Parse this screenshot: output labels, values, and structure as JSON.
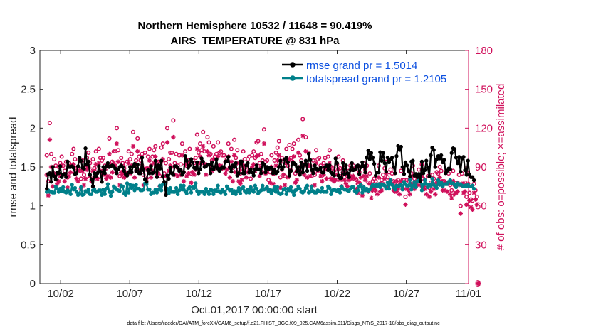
{
  "chart_data": {
    "type": "line",
    "title": [
      "Northern Hemisphere 10532 / 11648 = 90.419%",
      "AIRS_TEMPERATURE @ 831 hPa"
    ],
    "xlabel": "Oct.01,2017 00:00:00 start",
    "ylabel_left": "rmse and totalspread",
    "ylabel_right": "# of obs: o=possible; ×=assimilated",
    "xlim": [
      0.5,
      31.5
    ],
    "ylim_left": [
      0,
      3
    ],
    "ylim_right": [
      0,
      180
    ],
    "x_ticks": [
      {
        "x": 2,
        "label": "10/02"
      },
      {
        "x": 7,
        "label": "10/07"
      },
      {
        "x": 12,
        "label": "10/12"
      },
      {
        "x": 17,
        "label": "10/17"
      },
      {
        "x": 22,
        "label": "10/22"
      },
      {
        "x": 27,
        "label": "10/27"
      },
      {
        "x": 32,
        "label": "11/01"
      }
    ],
    "y_ticks_left": [
      "0",
      "0.5",
      "1",
      "1.5",
      "2",
      "2.5",
      "3"
    ],
    "y_ticks_right": [
      "0",
      "30",
      "60",
      "90",
      "120",
      "150",
      "180"
    ],
    "colors": {
      "rmse": "#000000",
      "spread": "#00808a",
      "obs": "#d0105b",
      "legend_text": "#0b4fe0"
    },
    "legend_position": "top-right",
    "series": [
      {
        "name": "rmse grand pr = 1.5014",
        "axis": "left",
        "marker": "dot",
        "values": [
          1.22,
          1.41,
          1.42,
          1.31,
          1.5,
          1.38,
          1.34,
          1.43,
          1.42,
          1.51,
          1.37,
          1.4,
          1.41,
          1.37,
          1.57,
          1.5,
          1.5,
          1.51,
          1.49,
          1.41,
          1.42,
          1.51,
          1.62,
          1.58,
          1.49,
          1.48,
          1.74,
          1.53,
          1.57,
          1.4,
          1.34,
          1.25,
          1.42,
          1.38,
          1.42,
          1.51,
          1.44,
          1.31,
          1.5,
          1.42,
          1.51,
          1.55,
          1.5,
          1.51,
          1.52,
          1.51,
          1.48,
          1.42,
          1.47,
          1.5,
          1.52,
          1.5,
          1.45,
          1.41,
          1.39,
          1.43,
          1.5,
          1.43,
          1.51,
          1.54,
          1.45,
          1.53,
          1.42,
          1.42,
          1.62,
          1.46,
          1.34,
          1.31,
          1.46,
          1.42,
          1.51,
          1.42,
          1.43,
          1.58,
          1.37,
          1.52,
          1.48,
          1.58,
          1.38,
          1.31,
          1.14,
          1.39,
          1.35,
          1.49,
          1.42,
          1.4,
          1.51,
          1.51,
          1.49,
          1.45,
          1.46,
          1.4,
          1.43,
          1.64,
          1.58,
          1.49,
          1.52,
          1.6,
          1.56,
          1.49,
          1.48,
          1.56,
          1.42,
          1.47,
          1.61,
          1.57,
          1.5,
          1.51,
          1.53,
          1.53,
          1.42,
          1.56,
          1.47,
          1.5,
          1.6,
          1.48,
          1.45,
          1.48,
          1.5,
          1.49,
          1.57,
          1.57,
          1.63,
          1.49,
          1.44,
          1.52,
          1.5,
          1.55,
          1.39,
          1.42,
          1.57,
          1.57,
          1.42,
          1.42,
          1.52,
          1.55,
          1.43,
          1.47,
          1.43,
          1.39,
          1.47,
          1.52,
          1.47,
          1.47,
          1.42,
          1.55,
          1.53,
          1.43,
          1.5,
          1.47,
          1.49,
          1.49,
          1.42,
          1.46,
          1.42,
          1.44,
          1.5,
          1.58,
          1.47,
          1.5,
          1.6,
          1.62,
          1.56,
          1.39,
          1.45,
          1.55,
          1.55,
          1.53,
          1.44,
          1.5,
          1.4,
          1.56,
          1.43,
          1.53,
          1.58,
          1.45,
          1.67,
          1.59,
          1.46,
          1.42,
          1.52,
          1.48,
          1.46,
          1.47,
          1.49,
          1.43,
          1.43,
          1.5,
          1.52,
          1.46,
          1.52,
          1.43,
          1.41,
          1.39,
          1.61,
          1.55,
          1.39,
          1.36,
          1.36,
          1.55,
          1.41,
          1.52,
          1.42,
          1.37,
          1.46,
          1.55,
          1.46,
          1.47,
          1.51,
          1.52,
          1.41,
          1.5,
          1.56,
          1.51,
          1.43,
          1.62,
          1.71,
          1.6,
          1.68,
          1.62,
          1.54,
          1.39,
          1.43,
          1.43,
          1.69,
          1.58,
          1.68,
          1.55,
          1.44,
          1.62,
          1.56,
          1.6,
          1.62,
          1.5,
          1.42,
          1.64,
          1.77,
          1.72,
          1.76,
          1.5,
          1.41,
          1.56,
          1.52,
          1.45,
          1.38,
          1.57,
          1.58,
          1.39,
          1.41,
          1.37,
          1.41,
          1.32,
          1.57,
          1.42,
          1.46,
          1.58,
          1.49,
          1.38,
          1.65,
          1.75,
          1.72,
          1.5,
          1.6,
          1.64,
          1.61,
          1.65,
          1.56,
          1.59,
          1.42,
          1.45,
          1.48,
          1.47,
          1.68,
          1.74,
          1.73,
          1.62,
          1.55,
          1.63,
          1.44,
          1.61,
          1.63,
          1.46,
          1.4,
          1.58,
          1.4,
          1.37,
          1.37,
          1.33
        ]
      },
      {
        "name": "totalspread grand pr = 1.2105",
        "axis": "left",
        "marker": "dot",
        "values": [
          1.18,
          1.2,
          1.18,
          1.18,
          1.17,
          1.17,
          1.25,
          1.22,
          1.18,
          1.22,
          1.19,
          1.24,
          1.18,
          1.17,
          1.2,
          1.18,
          1.15,
          1.27,
          1.21,
          1.23,
          1.18,
          1.14,
          1.16,
          1.24,
          1.14,
          1.15,
          1.19,
          1.18,
          1.21,
          1.15,
          1.15,
          1.2,
          1.21,
          1.18,
          1.18,
          1.2,
          1.2,
          1.14,
          1.21,
          1.15,
          1.22,
          1.28,
          1.18,
          1.13,
          1.18,
          1.25,
          1.23,
          1.21,
          1.2,
          1.19,
          1.26,
          1.25,
          1.16,
          1.14,
          1.29,
          1.17,
          1.27,
          1.23,
          1.26,
          1.2,
          1.27,
          1.22,
          1.22,
          1.2,
          1.2,
          1.21,
          1.29,
          1.28,
          1.21,
          1.21,
          1.15,
          1.17,
          1.17,
          1.21,
          1.17,
          1.21,
          1.26,
          1.2,
          1.28,
          1.28,
          1.21,
          1.22,
          1.16,
          1.23,
          1.18,
          1.18,
          1.18,
          1.23,
          1.15,
          1.2,
          1.26,
          1.21,
          1.26,
          1.19,
          1.16,
          1.22,
          1.24,
          1.17,
          1.24,
          1.23,
          1.29,
          1.19,
          1.15,
          1.18,
          1.18,
          1.18,
          1.15,
          1.22,
          1.18,
          1.15,
          1.21,
          1.2,
          1.15,
          1.2,
          1.19,
          1.26,
          1.18,
          1.17,
          1.21,
          1.18,
          1.15,
          1.25,
          1.22,
          1.2,
          1.21,
          1.16,
          1.19,
          1.15,
          1.19,
          1.23,
          1.16,
          1.22,
          1.24,
          1.19,
          1.17,
          1.21,
          1.17,
          1.24,
          1.2,
          1.18,
          1.26,
          1.22,
          1.16,
          1.18,
          1.2,
          1.26,
          1.21,
          1.22,
          1.24,
          1.19,
          1.21,
          1.16,
          1.2,
          1.24,
          1.18,
          1.24,
          1.16,
          1.15,
          1.16,
          1.21,
          1.22,
          1.15,
          1.22,
          1.2,
          1.24,
          1.18,
          1.14,
          1.2,
          1.21,
          1.25,
          1.22,
          1.18,
          1.17,
          1.19,
          1.23,
          1.26,
          1.17,
          1.18,
          1.25,
          1.19,
          1.17,
          1.17,
          1.2,
          1.19,
          1.18,
          1.23,
          1.18,
          1.18,
          1.18,
          1.25,
          1.23,
          1.15,
          1.2,
          1.21,
          1.2,
          1.19,
          1.21,
          1.17,
          1.25,
          1.22,
          1.21,
          1.21,
          1.2,
          1.19,
          1.22,
          1.24,
          1.24,
          1.19,
          1.17,
          1.2,
          1.25,
          1.27,
          1.17,
          1.24,
          1.2,
          1.22,
          1.19,
          1.21,
          1.24,
          1.27,
          1.26,
          1.27,
          1.25,
          1.28,
          1.24,
          1.28,
          1.27,
          1.26,
          1.22,
          1.3,
          1.22,
          1.33,
          1.27,
          1.24,
          1.21,
          1.26,
          1.25,
          1.26,
          1.27,
          1.21,
          1.31,
          1.28,
          1.26,
          1.26,
          1.34,
          1.21,
          1.26,
          1.31,
          1.24,
          1.32,
          1.35,
          1.35,
          1.2,
          1.27,
          1.33,
          1.28,
          1.24,
          1.27,
          1.26,
          1.35,
          1.27,
          1.25,
          1.23,
          1.33,
          1.27,
          1.3,
          1.25,
          1.28,
          1.28,
          1.28,
          1.31,
          1.33,
          1.29,
          1.29,
          1.27,
          1.24,
          1.29,
          1.27,
          1.28,
          1.26,
          1.25,
          1.26,
          1.25,
          1.27,
          1.25,
          1.25,
          1.26,
          1.22
        ]
      },
      {
        "name": "# obs possible",
        "axis": "right",
        "marker": "circle",
        "values": [
          99,
          79,
          124,
          100,
          85,
          96,
          91,
          85,
          90,
          93,
          98,
          91,
          87,
          94,
          82,
          93,
          91,
          100,
          104,
          96,
          89,
          89,
          95,
          81,
          95,
          84,
          89,
          97,
          101,
          93,
          88,
          96,
          89,
          102,
          88,
          104,
          97,
          95,
          97,
          91,
          89,
          91,
          112,
          91,
          94,
          102,
          102,
          120,
          103,
          83,
          97,
          93,
          89,
          92,
          94,
          102,
          96,
          100,
          117,
          91,
          95,
          112,
          98,
          95,
          100,
          84,
          101,
          88,
          98,
          104,
          91,
          98,
          103,
          106,
          93,
          94,
          83,
          105,
          108,
          85,
          93,
          120,
          96,
          101,
          101,
          126,
          93,
          100,
          91,
          99,
          92,
          108,
          86,
          102,
          91,
          95,
          104,
          85,
          95,
          93,
          97,
          115,
          101,
          108,
          103,
          117,
          102,
          92,
          113,
          109,
          100,
          95,
          106,
          98,
          100,
          109,
          101,
          102,
          99,
          99,
          94,
          96,
          108,
          90,
          104,
          87,
          111,
          97,
          103,
          88,
          85,
          89,
          102,
          96,
          90,
          96,
          98,
          81,
          99,
          102,
          97,
          109,
          110,
          93,
          100,
          95,
          119,
          94,
          95,
          80,
          86,
          99,
          85,
          95,
          101,
          105,
          110,
          82,
          97,
          94,
          83,
          104,
          91,
          107,
          97,
          104,
          108,
          85,
          87,
          111,
          99,
          95,
          127,
          92,
          113,
          91,
          101,
          91,
          83,
          95,
          84,
          103,
          96,
          97,
          91,
          88,
          93,
          97,
          90,
          98,
          103,
          90,
          89,
          87,
          88,
          92,
          98,
          89,
          83,
          95,
          89,
          85,
          83,
          87,
          91,
          88,
          91,
          88,
          80,
          77,
          86,
          90,
          75,
          93,
          88,
          91,
          78,
          85,
          73,
          79,
          81,
          79,
          76,
          91,
          77,
          80,
          84,
          89,
          94,
          82,
          86,
          88,
          85,
          79,
          78,
          79,
          80,
          76,
          87,
          80,
          80,
          67,
          80,
          79,
          76,
          85,
          91,
          81,
          84,
          83,
          88,
          83,
          92,
          81,
          80,
          76,
          83,
          74,
          78,
          84,
          81,
          76,
          86,
          85,
          90,
          87,
          79,
          79,
          86,
          78,
          85,
          76,
          72,
          87,
          76,
          78,
          78,
          84,
          60,
          85,
          77,
          78,
          67,
          85,
          70,
          65,
          64,
          77,
          72,
          67,
          0
        ]
      },
      {
        "name": "# obs assimilated",
        "axis": "right",
        "marker": "asterisk",
        "values": [
          84,
          68,
          111,
          90,
          75,
          85,
          84,
          77,
          79,
          83,
          91,
          84,
          79,
          84,
          74,
          83,
          86,
          91,
          92,
          85,
          81,
          79,
          87,
          73,
          87,
          76,
          81,
          88,
          90,
          83,
          79,
          87,
          82,
          92,
          81,
          93,
          87,
          85,
          87,
          84,
          81,
          83,
          100,
          82,
          86,
          93,
          91,
          108,
          94,
          76,
          86,
          85,
          82,
          84,
          86,
          93,
          85,
          91,
          106,
          82,
          87,
          102,
          87,
          87,
          91,
          76,
          89,
          81,
          89,
          95,
          82,
          87,
          93,
          98,
          84,
          85,
          75,
          94,
          96,
          78,
          83,
          109,
          87,
          91,
          90,
          113,
          84,
          90,
          83,
          88,
          84,
          99,
          79,
          92,
          83,
          85,
          93,
          78,
          86,
          84,
          88,
          104,
          93,
          98,
          93,
          106,
          92,
          84,
          102,
          99,
          91,
          87,
          96,
          89,
          91,
          98,
          91,
          91,
          89,
          89,
          85,
          88,
          98,
          82,
          94,
          79,
          99,
          86,
          93,
          79,
          77,
          80,
          91,
          87,
          82,
          86,
          87,
          74,
          90,
          92,
          87,
          98,
          99,
          83,
          90,
          86,
          108,
          85,
          86,
          72,
          78,
          90,
          77,
          85,
          91,
          95,
          99,
          74,
          88,
          84,
          76,
          93,
          82,
          96,
          88,
          94,
          98,
          78,
          80,
          101,
          90,
          86,
          114,
          84,
          102,
          82,
          91,
          83,
          75,
          86,
          76,
          93,
          87,
          88,
          83,
          79,
          84,
          88,
          81,
          88,
          93,
          81,
          80,
          79,
          80,
          84,
          88,
          80,
          75,
          86,
          80,
          77,
          75,
          80,
          83,
          81,
          83,
          81,
          73,
          70,
          78,
          82,
          68,
          83,
          80,
          83,
          71,
          77,
          66,
          72,
          74,
          72,
          69,
          82,
          71,
          72,
          77,
          81,
          85,
          74,
          78,
          80,
          77,
          72,
          71,
          71,
          73,
          69,
          79,
          73,
          73,
          61,
          73,
          72,
          69,
          77,
          83,
          73,
          76,
          76,
          80,
          76,
          83,
          74,
          73,
          69,
          76,
          67,
          71,
          77,
          73,
          69,
          78,
          77,
          82,
          79,
          72,
          72,
          78,
          71,
          77,
          69,
          66,
          79,
          69,
          70,
          71,
          76,
          54,
          77,
          70,
          71,
          61,
          77,
          64,
          59,
          57,
          70,
          65,
          61,
          0
        ]
      }
    ]
  },
  "footer": "data file: /Users/raeder/DAI/ATM_forcXX/CAM6_setup/f.e21.FHIST_BGC.f09_025.CAM6assim.011/Diags_NTrS_2017-10/obs_diag_output.nc"
}
